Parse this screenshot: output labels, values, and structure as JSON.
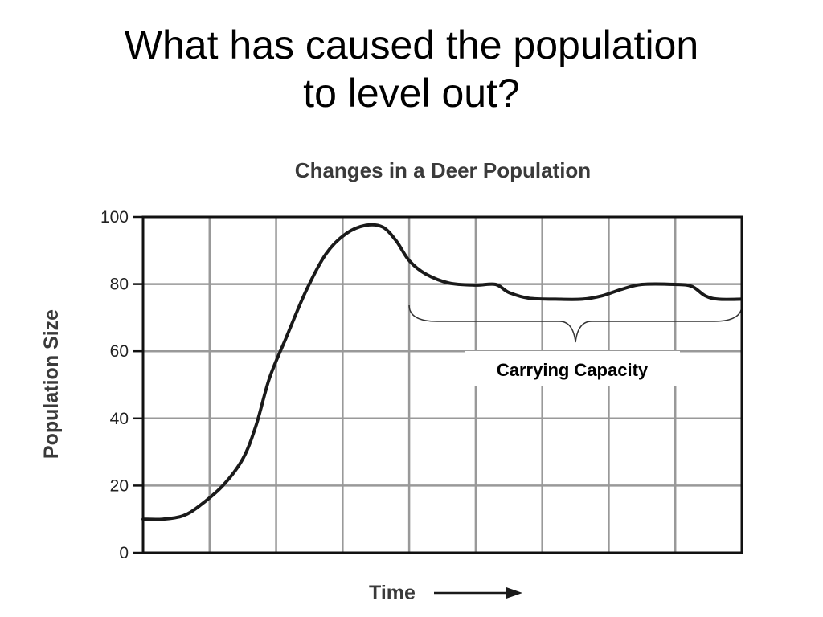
{
  "slide": {
    "title_line1": "What has caused the population",
    "title_line2": "to level out?"
  },
  "chart_data": {
    "type": "line",
    "title": "Changes in a Deer Population",
    "xlabel": "Time",
    "ylabel": "Population Size",
    "xlim": [
      0,
      9
    ],
    "ylim": [
      0,
      100
    ],
    "yticks": [
      "0",
      "20",
      "40",
      "60",
      "80",
      "100"
    ],
    "x_tick_labels": [],
    "x_gridlines": 9,
    "grid": true,
    "x_arrow": true,
    "line_color": "#1a1a1a",
    "grid_color": "#999999",
    "series": [
      {
        "points": [
          [
            0,
            10
          ],
          [
            0.3,
            10
          ],
          [
            0.6,
            11
          ],
          [
            0.85,
            14
          ],
          [
            1.2,
            20
          ],
          [
            1.5,
            28
          ],
          [
            1.7,
            38
          ],
          [
            1.9,
            52
          ],
          [
            2.15,
            64
          ],
          [
            2.45,
            78
          ],
          [
            2.75,
            89
          ],
          [
            3.05,
            95
          ],
          [
            3.35,
            97.5
          ],
          [
            3.6,
            97
          ],
          [
            3.8,
            93
          ],
          [
            4.0,
            87
          ],
          [
            4.25,
            83
          ],
          [
            4.6,
            80.3
          ],
          [
            5.0,
            79.7
          ],
          [
            5.3,
            79.9
          ],
          [
            5.5,
            77.5
          ],
          [
            5.8,
            75.8
          ],
          [
            6.2,
            75.5
          ],
          [
            6.6,
            75.5
          ],
          [
            6.9,
            76.5
          ],
          [
            7.2,
            78.5
          ],
          [
            7.5,
            79.9
          ],
          [
            8.0,
            79.9
          ],
          [
            8.25,
            79.3
          ],
          [
            8.45,
            76.5
          ],
          [
            8.65,
            75.5
          ],
          [
            9.0,
            75.5
          ]
        ]
      }
    ],
    "annotations": [
      {
        "text": "Carrying Capacity",
        "type": "brace",
        "x_start": 4.0,
        "x_end": 9.0
      }
    ]
  }
}
